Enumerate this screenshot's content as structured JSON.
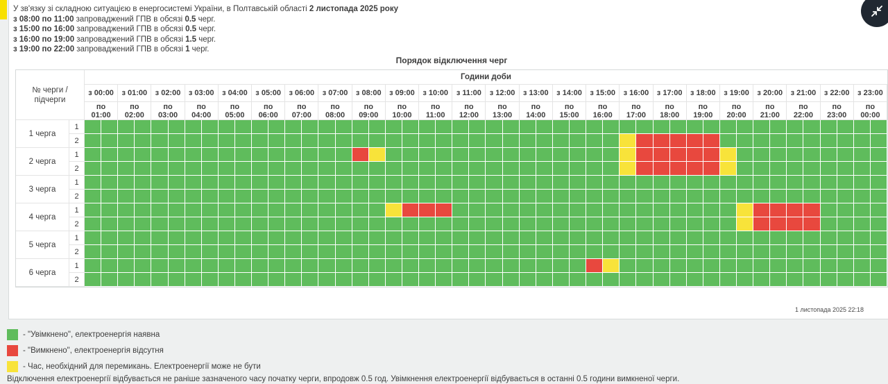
{
  "colors": {
    "on": "#5FBC5C",
    "off": "#E8483E",
    "switching": "#F8E33A",
    "accent_strip": "#F8E000",
    "button_bg": "#202731",
    "button_glyph": "#ffffff"
  },
  "info": {
    "lines": [
      [
        {
          "t": "У зв'язку зі складною ситуацією в енергосистемі України, в Полтавській області ",
          "b": false
        },
        {
          "t": "2 листопада 2025 року",
          "b": true
        }
      ],
      [
        {
          "t": "з 08:00 по 11:00",
          "b": true
        },
        {
          "t": " запроваджений ГПВ в обсязі ",
          "b": false
        },
        {
          "t": "0.5",
          "b": true
        },
        {
          "t": " черг.",
          "b": false
        }
      ],
      [
        {
          "t": "з 15:00 по 16:00",
          "b": true
        },
        {
          "t": " запроваджений ГПВ в обсязі ",
          "b": false
        },
        {
          "t": "0.5",
          "b": true
        },
        {
          "t": " черг.",
          "b": false
        }
      ],
      [
        {
          "t": "з 16:00 по 19:00",
          "b": true
        },
        {
          "t": " запроваджений ГПВ в обсязі ",
          "b": false
        },
        {
          "t": "1.5",
          "b": true
        },
        {
          "t": " черг.",
          "b": false
        }
      ],
      [
        {
          "t": "з 19:00 по 22:00",
          "b": true
        },
        {
          "t": " запроваджений ГПВ в обсязі ",
          "b": false
        },
        {
          "t": "1",
          "b": true
        },
        {
          "t": " черг.",
          "b": false
        }
      ]
    ]
  },
  "collapse_button": {
    "icon": "collapse-arrows-icon"
  },
  "table": {
    "title": "Порядок відключення черг",
    "hours_header": "Години доби",
    "queue_col_header": "№ черги / підчерги",
    "from_prefix": "з",
    "to_prefix": "по",
    "hours": [
      {
        "from": "00:00",
        "to": "01:00"
      },
      {
        "from": "01:00",
        "to": "02:00"
      },
      {
        "from": "02:00",
        "to": "03:00"
      },
      {
        "from": "03:00",
        "to": "04:00"
      },
      {
        "from": "04:00",
        "to": "05:00"
      },
      {
        "from": "05:00",
        "to": "06:00"
      },
      {
        "from": "06:00",
        "to": "07:00"
      },
      {
        "from": "07:00",
        "to": "08:00"
      },
      {
        "from": "08:00",
        "to": "09:00"
      },
      {
        "from": "09:00",
        "to": "10:00"
      },
      {
        "from": "10:00",
        "to": "11:00"
      },
      {
        "from": "11:00",
        "to": "12:00"
      },
      {
        "from": "12:00",
        "to": "13:00"
      },
      {
        "from": "13:00",
        "to": "14:00"
      },
      {
        "from": "14:00",
        "to": "15:00"
      },
      {
        "from": "15:00",
        "to": "16:00"
      },
      {
        "from": "16:00",
        "to": "17:00"
      },
      {
        "from": "17:00",
        "to": "18:00"
      },
      {
        "from": "18:00",
        "to": "19:00"
      },
      {
        "from": "19:00",
        "to": "20:00"
      },
      {
        "from": "20:00",
        "to": "21:00"
      },
      {
        "from": "21:00",
        "to": "22:00"
      },
      {
        "from": "22:00",
        "to": "23:00"
      },
      {
        "from": "23:00",
        "to": "00:00"
      }
    ],
    "queues": [
      {
        "label": "1 черга",
        "subqueues": [
          "1",
          "2"
        ]
      },
      {
        "label": "2 черга",
        "subqueues": [
          "1",
          "2"
        ]
      },
      {
        "label": "3 черга",
        "subqueues": [
          "1",
          "2"
        ]
      },
      {
        "label": "4 черга",
        "subqueues": [
          "1",
          "2"
        ]
      },
      {
        "label": "5 черга",
        "subqueues": [
          "1",
          "2"
        ]
      },
      {
        "label": "6 черга",
        "subqueues": [
          "1",
          "2"
        ]
      }
    ],
    "slot_legend": "48 half-hour slots per row; G=on(green) R=off(red) Y=switching(yellow)",
    "rows": [
      "GGGGGGGGGGGGGGGGGGGGGGGGGGGGGGGGGGGGGGGGGGGGGGGG",
      "GGGGGGGGGGGGGGGGGGGGGGGGGGGGGGGGYRRRRRGGGGGGGGGG",
      "GGGGGGGGGGGGGGGGRYGGGGGGGGGGGGGGYRRRRRYGGGGGGGGG",
      "GGGGGGGGGGGGGGGGGGGGGGGGGGGGGGGGYRRRRRYGGGGGGGGG",
      "GGGGGGGGGGGGGGGGGGGGGGGGGGGGGGGGGGGGGGGGGGGGGGGG",
      "GGGGGGGGGGGGGGGGGGGGGGGGGGGGGGGGGGGGGGGGGGGGGGGG",
      "GGGGGGGGGGGGGGGGGGYRRRGGGGGGGGGGGGGGGGGYRRRRGGGG",
      "GGGGGGGGGGGGGGGGGGGGGGGGGGGGGGGGGGGGGGGYRRRRGGGG",
      "GGGGGGGGGGGGGGGGGGGGGGGGGGGGGGGGGGGGGGGGGGGGGGGG",
      "GGGGGGGGGGGGGGGGGGGGGGGGGGGGGGGGGGGGGGGGGGGGGGGG",
      "GGGGGGGGGGGGGGGGGGGGGGGGGGGGGGRYGGGGGGGGGGGGGGGG",
      "GGGGGGGGGGGGGGGGGGGGGGGGGGGGGGGGGGGGGGGGGGGGGGGG"
    ]
  },
  "timestamp": "1 листопада 2025 22:18",
  "legend": [
    {
      "color_key": "on",
      "label": "- \"Увімкнено\", електроенергія наявна"
    },
    {
      "color_key": "off",
      "label": "- \"Вимкнено\", електроенергія відсутня"
    },
    {
      "color_key": "switching",
      "label": "- Час, необхідний для перемикань. Електроенергії може не бути"
    }
  ],
  "footnote": "Відключення електроенергії відбувається не раніше зазначеного часу початку черги, впродовж 0.5 год. Увімкнення електроенергії відбувається в останні 0.5 години вимкненої черги."
}
